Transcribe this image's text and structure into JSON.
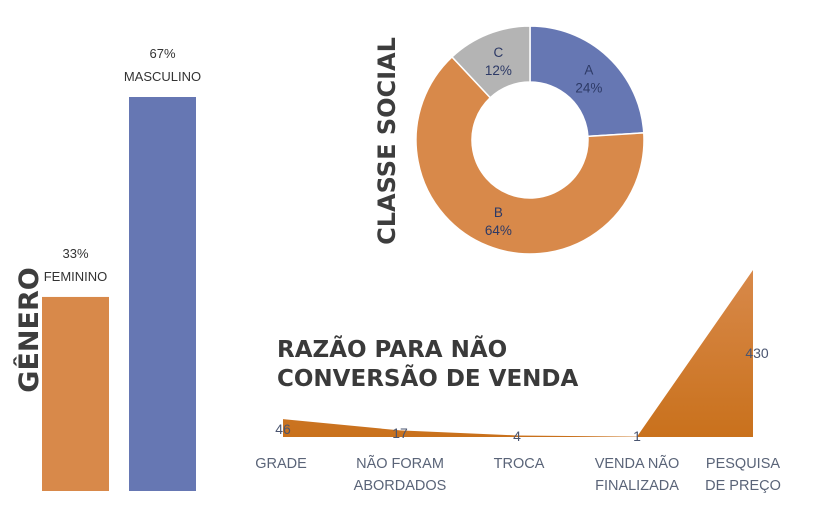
{
  "colors": {
    "orange": "#D8894A",
    "orange_dark": "#C9711C",
    "blue": "#6677B3",
    "gray": "#B4B4B4"
  },
  "chart_data": [
    {
      "type": "bar",
      "title": "GÊNERO",
      "categories": [
        "FEMININO",
        "MASCULINO"
      ],
      "values": [
        33,
        67
      ],
      "value_labels": [
        "33%",
        "67%"
      ],
      "ylim": [
        0,
        67
      ],
      "grid": false,
      "legend": "none"
    },
    {
      "type": "pie",
      "subtype": "donut",
      "title": "CLASSE SOCIAL",
      "categories": [
        "A",
        "B",
        "C"
      ],
      "values": [
        24,
        64,
        12
      ],
      "value_labels": [
        "24%",
        "64%",
        "12%"
      ],
      "grid": false,
      "legend": "none"
    },
    {
      "type": "area",
      "title": "RAZÃO PARA NÃO CONVERSÃO DE VENDA",
      "title_lines": [
        "RAZÃO PARA NÃO",
        "CONVERSÃO DE VENDA"
      ],
      "categories": [
        "GRADE",
        "NÃO FORAM ABORDADOS",
        "TROCA",
        "VENDA NÃO FINALIZADA",
        "PESQUISA DE PREÇO"
      ],
      "category_lines": [
        [
          "GRADE"
        ],
        [
          "NÃO FORAM",
          "ABORDADOS"
        ],
        [
          "TROCA"
        ],
        [
          "VENDA NÃO",
          "FINALIZADA"
        ],
        [
          "PESQUISA",
          "DE PREÇO"
        ]
      ],
      "values": [
        46,
        17,
        4,
        1,
        430
      ],
      "ylim": [
        0,
        430
      ],
      "grid": false,
      "legend": "none"
    }
  ]
}
